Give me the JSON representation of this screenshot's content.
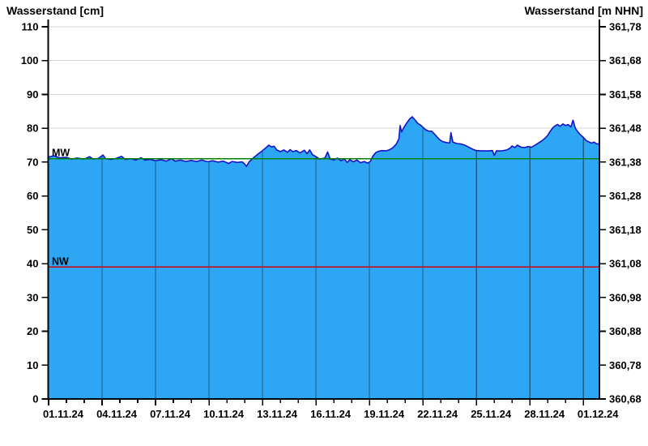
{
  "titles": {
    "left": "Wasserstand [cm]",
    "right": "Wasserstand [m NHN]"
  },
  "chart_data": {
    "type": "area",
    "title_left": "Wasserstand [cm]",
    "title_right": "Wasserstand [m NHN]",
    "x_tick_labels": [
      "01.11.24",
      "04.11.24",
      "07.11.24",
      "10.11.24",
      "13.11.24",
      "16.11.24",
      "19.11.24",
      "22.11.24",
      "25.11.24",
      "28.11.24",
      "01.12.24"
    ],
    "x_tick_interval_days": 3,
    "x_minor_interval_days": 1,
    "x_domain_days": [
      0,
      30.9
    ],
    "y_left": {
      "ticks": [
        0,
        10,
        20,
        30,
        40,
        50,
        60,
        70,
        80,
        90,
        100,
        110
      ],
      "lim": [
        0,
        110
      ]
    },
    "y_right": {
      "ticks": [
        "360,68",
        "360,78",
        "360,88",
        "360,98",
        "361,08",
        "361,18",
        "361,28",
        "361,38",
        "361,48",
        "361,58",
        "361,68",
        "361,78"
      ]
    },
    "grid": {
      "h_color": "#d6d6d6",
      "v_color": "#1d5d86",
      "grid_h": true,
      "grid_v": true
    },
    "reference_lines": [
      {
        "name": "MW",
        "value": 71,
        "color": "#008000"
      },
      {
        "name": "NW",
        "value": 39,
        "color": "#d40000"
      }
    ],
    "series": [
      {
        "name": "Wasserstand",
        "fill_color": "#2da7f3",
        "line_color": "#1414c8",
        "points": [
          [
            0.0,
            71.5
          ],
          [
            0.3,
            71.9
          ],
          [
            0.6,
            71.3
          ],
          [
            1.0,
            71.4
          ],
          [
            1.3,
            70.9
          ],
          [
            1.6,
            71.2
          ],
          [
            2.0,
            70.9
          ],
          [
            2.3,
            71.6
          ],
          [
            2.5,
            70.9
          ],
          [
            2.8,
            71.1
          ],
          [
            3.05,
            72.1
          ],
          [
            3.2,
            71.0
          ],
          [
            3.5,
            70.8
          ],
          [
            3.8,
            71.1
          ],
          [
            4.1,
            71.7
          ],
          [
            4.3,
            70.8
          ],
          [
            4.6,
            71.0
          ],
          [
            4.9,
            70.6
          ],
          [
            5.2,
            71.3
          ],
          [
            5.4,
            70.6
          ],
          [
            5.7,
            70.8
          ],
          [
            6.0,
            70.4
          ],
          [
            6.3,
            70.7
          ],
          [
            6.6,
            70.3
          ],
          [
            6.9,
            71.0
          ],
          [
            7.1,
            70.3
          ],
          [
            7.4,
            70.6
          ],
          [
            7.7,
            70.2
          ],
          [
            8.0,
            70.5
          ],
          [
            8.3,
            70.2
          ],
          [
            8.6,
            70.6
          ],
          [
            8.9,
            70.1
          ],
          [
            9.2,
            70.4
          ],
          [
            9.5,
            70.0
          ],
          [
            9.8,
            70.3
          ],
          [
            10.1,
            69.6
          ],
          [
            10.3,
            70.2
          ],
          [
            10.6,
            69.9
          ],
          [
            10.85,
            70.1
          ],
          [
            11.0,
            69.4
          ],
          [
            11.1,
            68.7
          ],
          [
            11.25,
            70.1
          ],
          [
            11.5,
            71.3
          ],
          [
            11.75,
            72.4
          ],
          [
            12.0,
            73.4
          ],
          [
            12.2,
            74.3
          ],
          [
            12.35,
            75.0
          ],
          [
            12.5,
            74.5
          ],
          [
            12.65,
            74.7
          ],
          [
            12.8,
            73.6
          ],
          [
            13.0,
            73.1
          ],
          [
            13.2,
            73.6
          ],
          [
            13.4,
            72.9
          ],
          [
            13.55,
            73.7
          ],
          [
            13.7,
            73.1
          ],
          [
            13.9,
            73.4
          ],
          [
            14.1,
            72.7
          ],
          [
            14.35,
            73.5
          ],
          [
            14.5,
            72.5
          ],
          [
            14.65,
            73.6
          ],
          [
            14.8,
            72.2
          ],
          [
            15.0,
            71.6
          ],
          [
            15.2,
            70.9
          ],
          [
            15.5,
            71.2
          ],
          [
            15.65,
            73.0
          ],
          [
            15.8,
            70.9
          ],
          [
            16.0,
            70.6
          ],
          [
            16.2,
            71.2
          ],
          [
            16.4,
            70.4
          ],
          [
            16.6,
            70.9
          ],
          [
            16.75,
            69.9
          ],
          [
            16.9,
            70.7
          ],
          [
            17.1,
            70.1
          ],
          [
            17.3,
            70.6
          ],
          [
            17.5,
            69.8
          ],
          [
            17.7,
            70.2
          ],
          [
            17.9,
            69.7
          ],
          [
            18.05,
            70.2
          ],
          [
            18.2,
            71.8
          ],
          [
            18.35,
            72.8
          ],
          [
            18.5,
            73.2
          ],
          [
            18.7,
            73.4
          ],
          [
            18.9,
            73.3
          ],
          [
            19.1,
            73.6
          ],
          [
            19.3,
            74.2
          ],
          [
            19.5,
            75.3
          ],
          [
            19.65,
            76.8
          ],
          [
            19.72,
            80.8
          ],
          [
            19.8,
            78.9
          ],
          [
            19.95,
            80.4
          ],
          [
            20.1,
            81.6
          ],
          [
            20.25,
            82.7
          ],
          [
            20.4,
            83.4
          ],
          [
            20.5,
            82.8
          ],
          [
            20.6,
            82.2
          ],
          [
            20.7,
            81.5
          ],
          [
            20.85,
            81.0
          ],
          [
            21.0,
            80.3
          ],
          [
            21.15,
            79.6
          ],
          [
            21.3,
            79.2
          ],
          [
            21.5,
            79.1
          ],
          [
            21.65,
            78.3
          ],
          [
            21.8,
            77.4
          ],
          [
            21.95,
            76.6
          ],
          [
            22.1,
            76.1
          ],
          [
            22.3,
            75.8
          ],
          [
            22.5,
            75.6
          ],
          [
            22.57,
            78.7
          ],
          [
            22.68,
            75.9
          ],
          [
            22.9,
            75.5
          ],
          [
            23.1,
            75.4
          ],
          [
            23.3,
            75.1
          ],
          [
            23.5,
            74.6
          ],
          [
            23.8,
            73.8
          ],
          [
            24.0,
            73.4
          ],
          [
            24.3,
            73.3
          ],
          [
            24.6,
            73.3
          ],
          [
            24.9,
            73.4
          ],
          [
            25.0,
            72.0
          ],
          [
            25.12,
            73.3
          ],
          [
            25.4,
            73.3
          ],
          [
            25.7,
            73.6
          ],
          [
            25.9,
            74.2
          ],
          [
            26.0,
            74.8
          ],
          [
            26.15,
            74.3
          ],
          [
            26.3,
            75.0
          ],
          [
            26.5,
            74.4
          ],
          [
            26.7,
            74.3
          ],
          [
            26.9,
            74.6
          ],
          [
            27.1,
            74.4
          ],
          [
            27.25,
            74.9
          ],
          [
            27.4,
            75.4
          ],
          [
            27.55,
            75.9
          ],
          [
            27.7,
            76.4
          ],
          [
            27.85,
            77.1
          ],
          [
            28.0,
            77.9
          ],
          [
            28.1,
            78.8
          ],
          [
            28.25,
            79.9
          ],
          [
            28.4,
            80.7
          ],
          [
            28.55,
            81.1
          ],
          [
            28.7,
            80.6
          ],
          [
            28.85,
            81.3
          ],
          [
            29.0,
            80.8
          ],
          [
            29.15,
            81.1
          ],
          [
            29.3,
            80.4
          ],
          [
            29.42,
            82.4
          ],
          [
            29.55,
            80.0
          ],
          [
            29.7,
            78.9
          ],
          [
            29.85,
            78.0
          ],
          [
            30.0,
            77.3
          ],
          [
            30.15,
            76.4
          ],
          [
            30.3,
            76.0
          ],
          [
            30.45,
            75.6
          ],
          [
            30.6,
            75.9
          ],
          [
            30.75,
            75.4
          ],
          [
            30.9,
            75.4
          ]
        ]
      }
    ]
  }
}
